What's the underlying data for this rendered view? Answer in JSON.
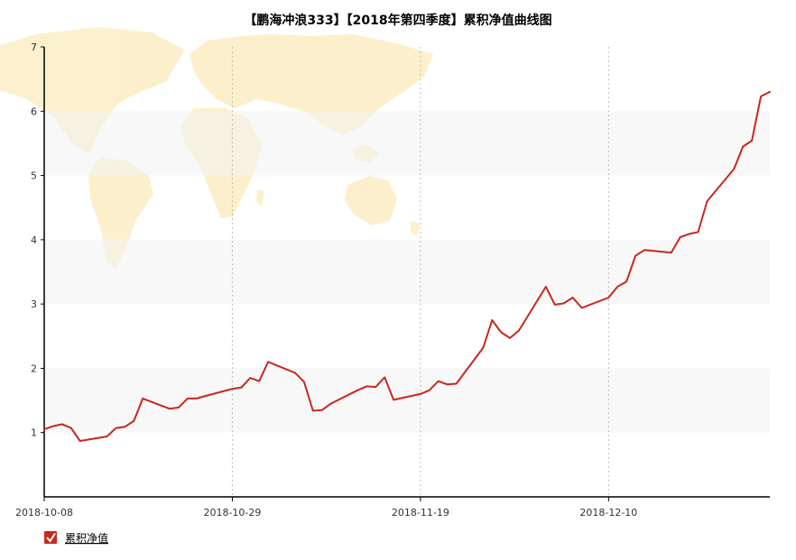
{
  "chart_data": {
    "type": "line",
    "title": "【鹏海冲浪333】【2018年第四季度】累积净值曲线图",
    "xlabel": "",
    "ylabel": "",
    "ylim": [
      0,
      7
    ],
    "y_ticks": [
      1,
      2,
      3,
      4,
      5,
      6,
      7
    ],
    "x_ticks": [
      "2018-10-08",
      "2018-10-29",
      "2018-11-19",
      "2018-12-10"
    ],
    "x_range": [
      "2018-10-08",
      "2018-12-28"
    ],
    "grid": "horizontal alternating bands, vertical dotted lines at x ticks",
    "legend": {
      "position": "bottom-left"
    },
    "series": [
      {
        "name": "累积净值",
        "color": "#c8281e",
        "x": [
          "2018-10-08",
          "2018-10-09",
          "2018-10-10",
          "2018-10-11",
          "2018-10-12",
          "2018-10-15",
          "2018-10-16",
          "2018-10-17",
          "2018-10-18",
          "2018-10-19",
          "2018-10-22",
          "2018-10-23",
          "2018-10-24",
          "2018-10-25",
          "2018-10-26",
          "2018-10-29",
          "2018-10-30",
          "2018-10-31",
          "2018-11-01",
          "2018-11-02",
          "2018-11-05",
          "2018-11-06",
          "2018-11-07",
          "2018-11-08",
          "2018-11-09",
          "2018-11-12",
          "2018-11-13",
          "2018-11-14",
          "2018-11-15",
          "2018-11-16",
          "2018-11-19",
          "2018-11-20",
          "2018-11-21",
          "2018-11-22",
          "2018-11-23",
          "2018-11-26",
          "2018-11-27",
          "2018-11-28",
          "2018-11-29",
          "2018-11-30",
          "2018-12-03",
          "2018-12-04",
          "2018-12-05",
          "2018-12-06",
          "2018-12-07",
          "2018-12-10",
          "2018-12-11",
          "2018-12-12",
          "2018-12-13",
          "2018-12-14",
          "2018-12-17",
          "2018-12-18",
          "2018-12-19",
          "2018-12-20",
          "2018-12-21",
          "2018-12-24",
          "2018-12-25",
          "2018-12-26",
          "2018-12-27",
          "2018-12-28"
        ],
        "values": [
          1.05,
          1.1,
          1.13,
          1.07,
          0.87,
          0.94,
          1.07,
          1.09,
          1.18,
          1.53,
          1.37,
          1.39,
          1.53,
          1.53,
          1.57,
          1.68,
          1.7,
          1.85,
          1.8,
          2.1,
          1.93,
          1.79,
          1.34,
          1.35,
          1.45,
          1.66,
          1.72,
          1.71,
          1.86,
          1.51,
          1.6,
          1.66,
          1.8,
          1.75,
          1.76,
          2.32,
          2.75,
          2.56,
          2.47,
          2.59,
          3.27,
          2.99,
          3.01,
          3.1,
          2.94,
          3.1,
          3.27,
          3.35,
          3.75,
          3.84,
          3.8,
          4.04,
          4.09,
          4.12,
          4.6,
          5.1,
          5.45,
          5.54,
          6.23,
          6.3
        ]
      }
    ]
  },
  "legend_items": [
    {
      "label": "累积净值",
      "checked": true,
      "color": "#c8281e"
    }
  ]
}
